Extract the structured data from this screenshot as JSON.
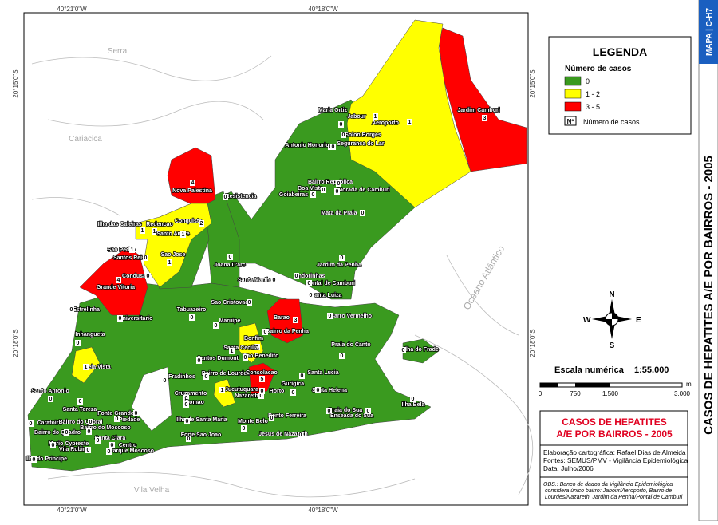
{
  "map": {
    "coords": {
      "top": [
        "40°21'0\"W",
        "40°18'0\"W"
      ],
      "bottom": [
        "40°21'0\"W",
        "40°18'0\"W"
      ],
      "left": [
        "20°15'0\"S",
        "20°18'0\"S"
      ],
      "right": [
        "20°15'0\"S",
        "20°18'0\"S"
      ]
    },
    "places": [
      "Serra",
      "Cariacica",
      "Vila Velha",
      "Oceano Atlântico"
    ],
    "neighborhoods": [
      {
        "name": "Maria Ortiz",
        "cases": 0
      },
      {
        "name": "Jabour",
        "cases": 1
      },
      {
        "name": "Aeroporto",
        "cases": 1
      },
      {
        "name": "Jardim Camburi",
        "cases": 3
      },
      {
        "name": "Solon Borges",
        "cases": 0
      },
      {
        "name": "Antonio Honorio",
        "cases": 0
      },
      {
        "name": "Seguranca do Lar",
        "cases": 0
      },
      {
        "name": "Bairro Republica",
        "cases": 0
      },
      {
        "name": "Boa Vista",
        "cases": 0
      },
      {
        "name": "Goiabeiras",
        "cases": 0
      },
      {
        "name": "Morada de Camburi",
        "cases": 0
      },
      {
        "name": "Resistencia",
        "cases": 0
      },
      {
        "name": "Nova Palestina",
        "cases": 4
      },
      {
        "name": "Mata da Praia",
        "cases": 0
      },
      {
        "name": "Ilha das Caieiras",
        "cases": 1
      },
      {
        "name": "Redencao",
        "cases": 1
      },
      {
        "name": "Conquista",
        "cases": 2
      },
      {
        "name": "Santo Andre",
        "cases": 1
      },
      {
        "name": "Sao Pedro",
        "cases": 1
      },
      {
        "name": "Santos Reis",
        "cases": 0
      },
      {
        "name": "Sao Jose",
        "cases": 1
      },
      {
        "name": "Joana D'arc",
        "cases": 0
      },
      {
        "name": "Jardim da Penha",
        "cases": 0
      },
      {
        "name": "Condusa",
        "cases": 0
      },
      {
        "name": "Grande Vitoria",
        "cases": 4
      },
      {
        "name": "Santa Martha",
        "cases": 0
      },
      {
        "name": "Andorinhas",
        "cases": 0
      },
      {
        "name": "Pontal de Camburi",
        "cases": 0
      },
      {
        "name": "Estrelinha",
        "cases": 0
      },
      {
        "name": "Sao Cristovao",
        "cases": 0
      },
      {
        "name": "Tabuazeiro",
        "cases": 0
      },
      {
        "name": "Santa Luiza",
        "cases": 0
      },
      {
        "name": "Universitario",
        "cases": 0
      },
      {
        "name": "Maruipe",
        "cases": 0
      },
      {
        "name": "Barao",
        "cases": 3
      },
      {
        "name": "Barro Vermelho",
        "cases": 0
      },
      {
        "name": "Bairro da Penha",
        "cases": 0
      },
      {
        "name": "Inhangueta",
        "cases": 0
      },
      {
        "name": "Bonfim",
        "cases": 1
      },
      {
        "name": "Santa Cecilia",
        "cases": 1
      },
      {
        "name": "Sao Benedito",
        "cases": 0
      },
      {
        "name": "Praia do Canto",
        "cases": 0
      },
      {
        "name": "Ilha do Frade",
        "cases": 0
      },
      {
        "name": "Santos Dumont",
        "cases": 0
      },
      {
        "name": "Bela Vista",
        "cases": 1
      },
      {
        "name": "Fradinhos",
        "cases": 0
      },
      {
        "name": "Bairro de Lourdes",
        "cases": 0
      },
      {
        "name": "Consolacao",
        "cases": 5
      },
      {
        "name": "Santa Lucia",
        "cases": 0
      },
      {
        "name": "Gurigica",
        "cases": 0
      },
      {
        "name": "Jucutuquara",
        "cases": 1
      },
      {
        "name": "Nazareth",
        "cases": 0
      },
      {
        "name": "Horto",
        "cases": 0
      },
      {
        "name": "Santa Helena",
        "cases": 0
      },
      {
        "name": "Cruzamento",
        "cases": 0
      },
      {
        "name": "Romao",
        "cases": 0
      },
      {
        "name": "Santo Antonio",
        "cases": 0
      },
      {
        "name": "Ilha Bela",
        "cases": 0
      },
      {
        "name": "Praia do Sua",
        "cases": 0
      },
      {
        "name": "Santa Tereza",
        "cases": 0
      },
      {
        "name": "Fonte Grande",
        "cases": 0
      },
      {
        "name": "Bento Ferreira",
        "cases": 0
      },
      {
        "name": "Ilha de Santa Maria",
        "cases": 0
      },
      {
        "name": "Monte Belo",
        "cases": 0
      },
      {
        "name": "Enseada do Sua",
        "cases": 0
      },
      {
        "name": "Caratoira",
        "cases": 0
      },
      {
        "name": "Piedade",
        "cases": 0
      },
      {
        "name": "Bairro do Cabral",
        "cases": 0
      },
      {
        "name": "Bairro do Moscoso",
        "cases": 0
      },
      {
        "name": "Bairro do Quadro",
        "cases": 0
      },
      {
        "name": "Forte Sao Joao",
        "cases": 0
      },
      {
        "name": "Jesus de Nazareth",
        "cases": 0
      },
      {
        "name": "Santa Clara",
        "cases": 0
      },
      {
        "name": "Mario Cypreste",
        "cases": 0
      },
      {
        "name": "Vila Rubim",
        "cases": 0
      },
      {
        "name": "Centro",
        "cases": 0
      },
      {
        "name": "Parque Moscoso",
        "cases": 0
      },
      {
        "name": "Ilha do Principe",
        "cases": 0
      }
    ]
  },
  "legend": {
    "title": "LEGENDA",
    "subtitle": "Número de casos",
    "items": [
      {
        "label": "0",
        "color": "#3a9a1f"
      },
      {
        "label": "1 - 2",
        "color": "#ffff00"
      },
      {
        "label": "3 - 5",
        "color": "#ff0000"
      }
    ],
    "symbol": "Nº",
    "symbol_label": "Número de casos"
  },
  "compass": {
    "n": "N",
    "s": "S",
    "e": "E",
    "w": "W"
  },
  "scale": {
    "label": "Escala numérica",
    "ratio": "1:55.000",
    "ticks": [
      "0",
      "750",
      "1.500",
      "3.000"
    ],
    "unit": "m"
  },
  "title_box": {
    "title": "CASOS DE HEPATITES A/E POR BAIRROS - 2005",
    "credits": [
      "Elaboração cartográfica: Rafael Dias de Almeida",
      "Fontes: SEMUS/PMV - Vigilância Epidemiológica",
      "Data: Julho/2006"
    ],
    "note": "OBS.: Banco de dados da Vigilância Epidemiológica considera único bairro: Jabour/Aeroporto, Bairro de Lourdes/Nazareth, Jardim da Penha/Pontal de Camburi"
  },
  "sidebar": {
    "code": "MAPA | C-H7",
    "title": "CASOS DE HEPATITES A/E POR BAIRROS - 2005"
  }
}
